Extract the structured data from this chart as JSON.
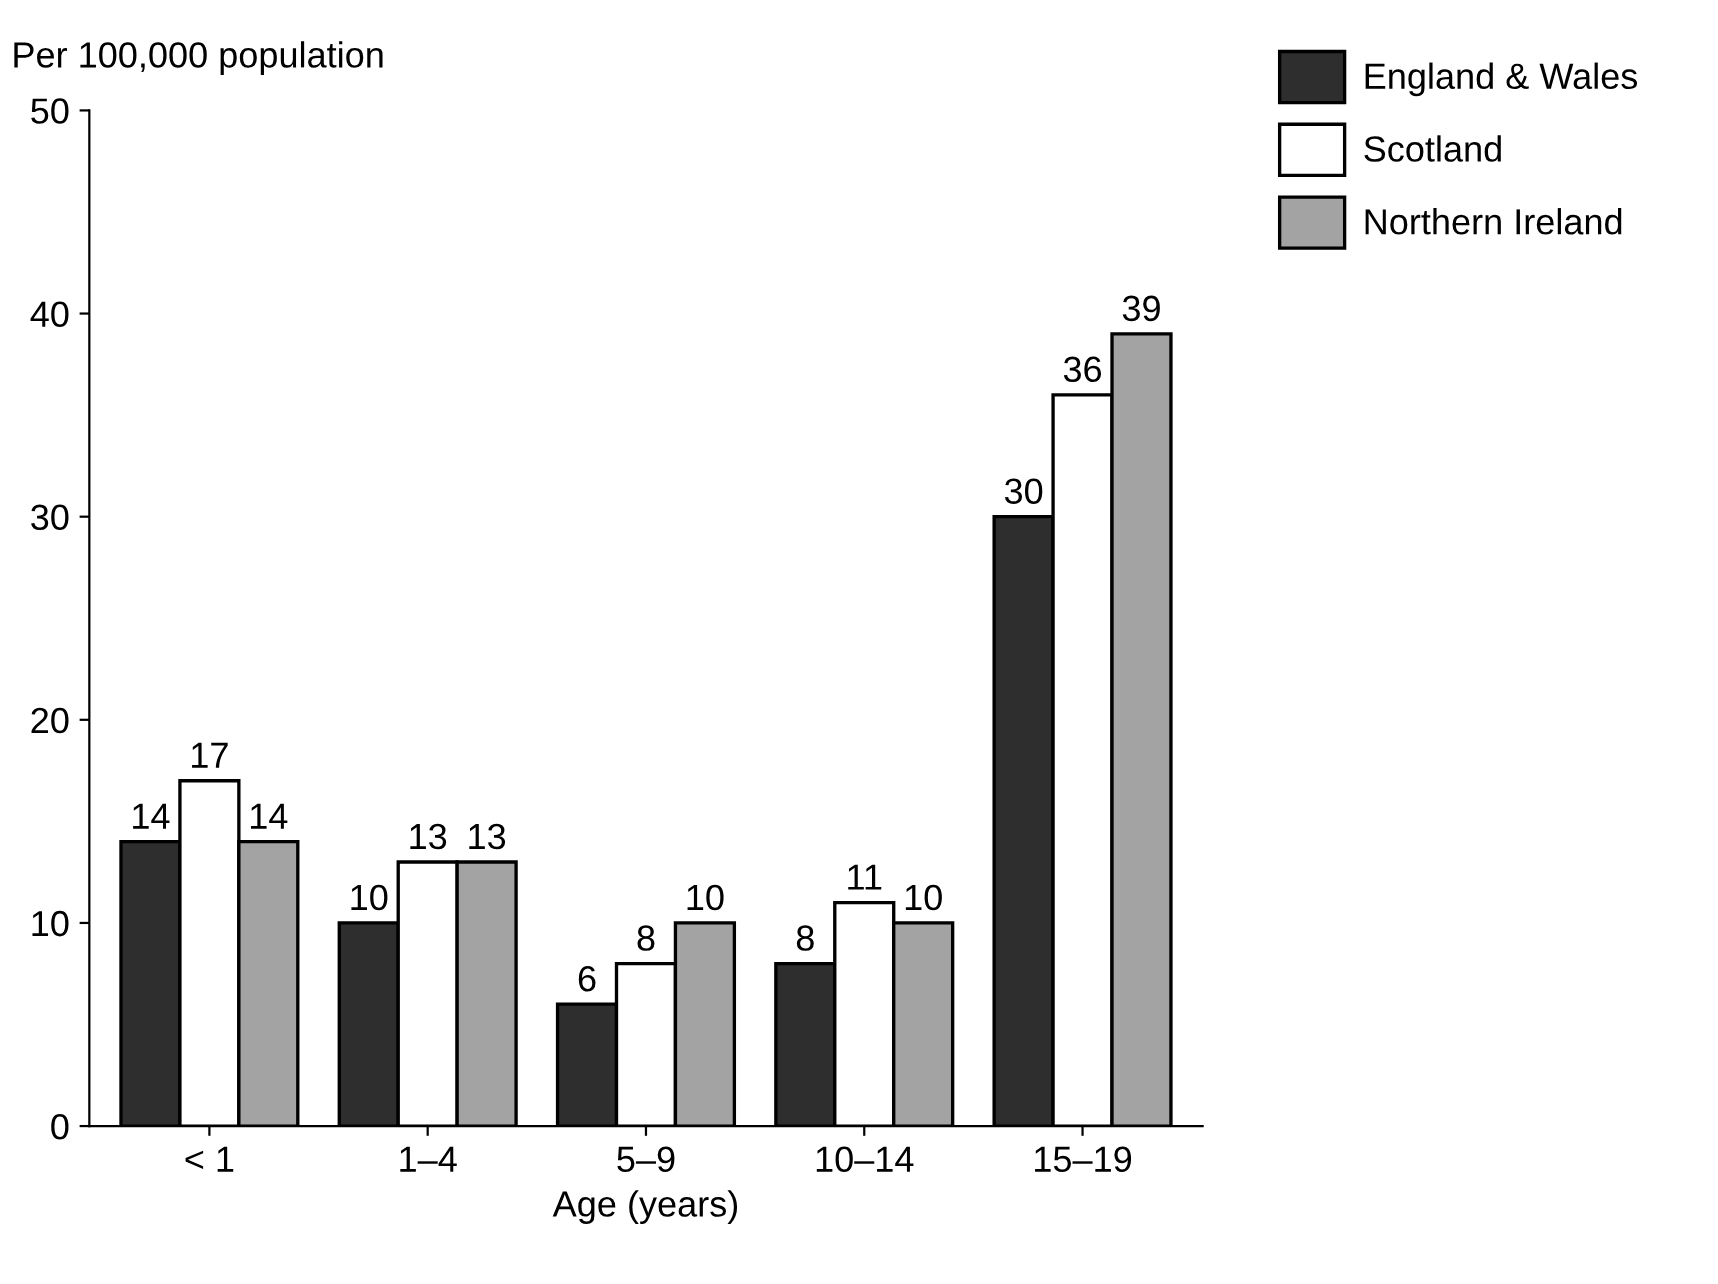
{
  "chart_data": {
    "type": "bar",
    "ylabel": "Per 100,000 population",
    "xlabel": "Age (years)",
    "categories": [
      "< 1",
      "1–4",
      "5–9",
      "10–14",
      "15–19"
    ],
    "series": [
      {
        "name": "England & Wales",
        "color": "#2e2e2e",
        "values": [
          14,
          10,
          6,
          8,
          30
        ]
      },
      {
        "name": "Scotland",
        "color": "#ffffff",
        "values": [
          17,
          13,
          8,
          11,
          36
        ]
      },
      {
        "name": "Northern Ireland",
        "color": "#a3a3a3",
        "values": [
          14,
          13,
          10,
          10,
          39
        ]
      }
    ],
    "ylim": [
      0,
      50
    ],
    "yticks": [
      0,
      10,
      20,
      30,
      40,
      50
    ],
    "grid": false,
    "legend": "top right",
    "data_labels": true
  }
}
